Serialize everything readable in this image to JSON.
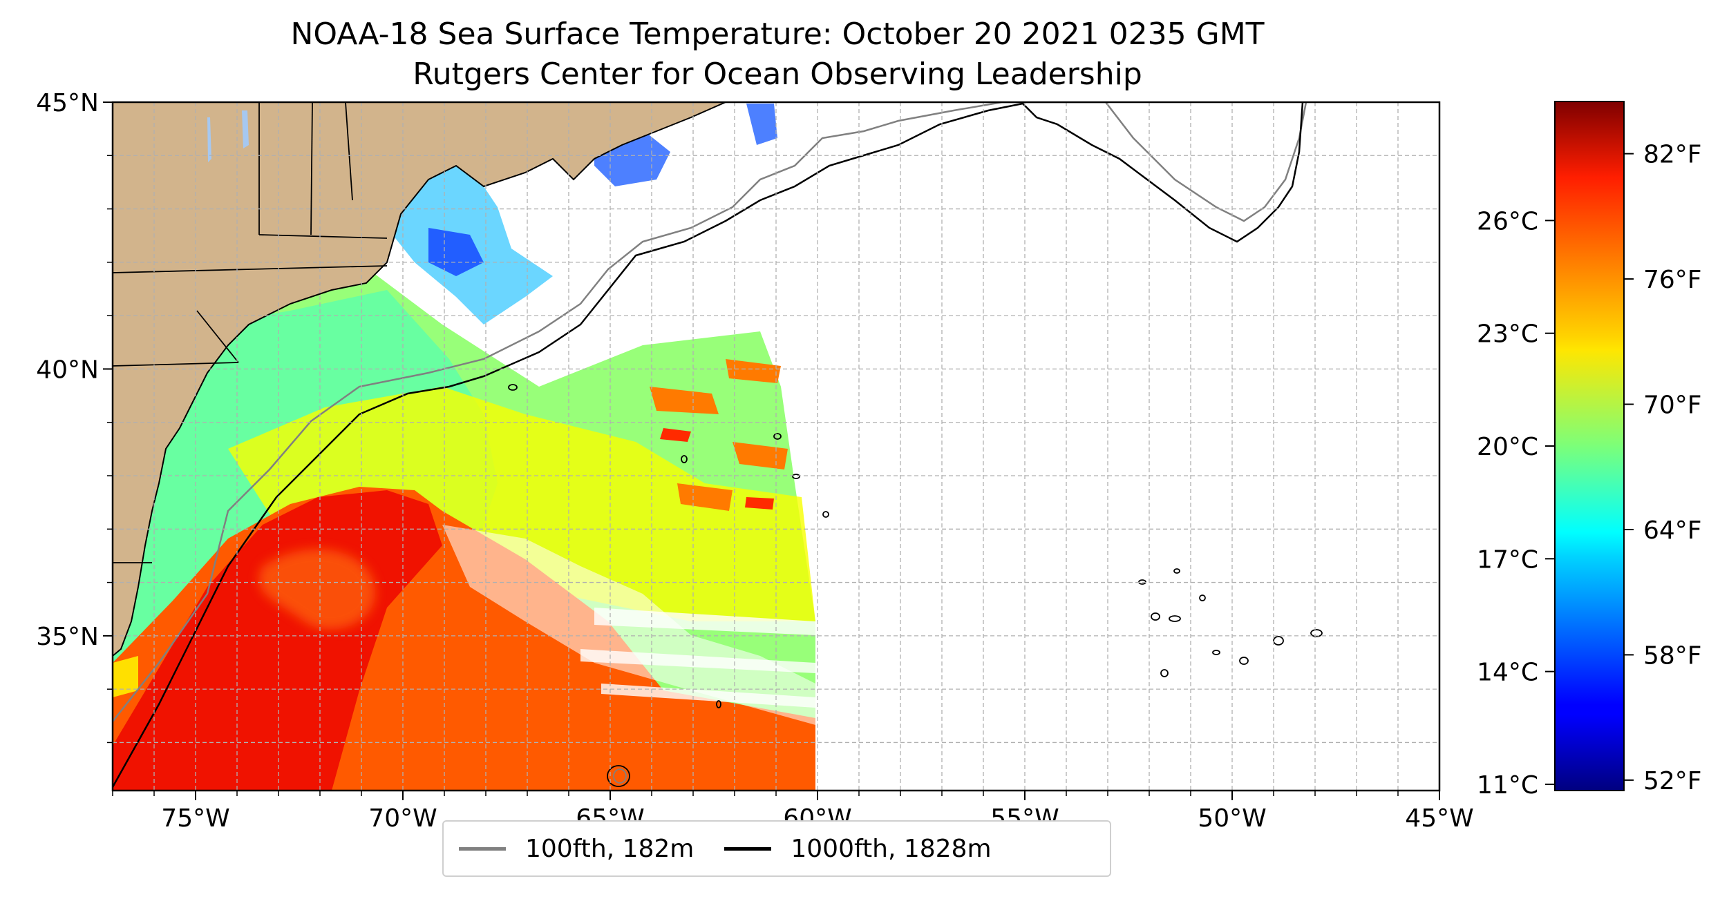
{
  "title": "NOAA-18 Sea Surface Temperature: October 20 2021 0235 GMT",
  "subtitle": "Rutgers Center for Ocean Observing Leadership",
  "map": {
    "extent": {
      "lon_min": -77,
      "lon_max": -45,
      "lat_min": 32.1,
      "lat_max": 45
    },
    "lon_ticks": [
      {
        "value": -75,
        "label": "75°W"
      },
      {
        "value": -70,
        "label": "70°W"
      },
      {
        "value": -65,
        "label": "65°W"
      },
      {
        "value": -60,
        "label": "60°W"
      },
      {
        "value": -55,
        "label": "55°W"
      },
      {
        "value": -50,
        "label": "50°W"
      },
      {
        "value": -45,
        "label": "45°W"
      }
    ],
    "lat_ticks": [
      {
        "value": 45,
        "label": "45°N"
      },
      {
        "value": 40,
        "label": "40°N"
      },
      {
        "value": 35,
        "label": "35°N"
      }
    ],
    "grid": true,
    "colors": {
      "land": "#d2b48c",
      "ocean_nodata": "#ffffff",
      "isobath_100": "#808080",
      "isobath_1000": "#000000",
      "lakes": "#a6c8f0"
    }
  },
  "colorbar": {
    "colormap": "jet",
    "celsius_ticks": [
      {
        "value": 11,
        "label": "11°C"
      },
      {
        "value": 14,
        "label": "14°C"
      },
      {
        "value": 17,
        "label": "17°C"
      },
      {
        "value": 20,
        "label": "20°C"
      },
      {
        "value": 23,
        "label": "23°C"
      },
      {
        "value": 26,
        "label": "26°C"
      }
    ],
    "fahrenheit_ticks": [
      {
        "value": 52,
        "label": "52°F"
      },
      {
        "value": 58,
        "label": "58°F"
      },
      {
        "value": 64,
        "label": "64°F"
      },
      {
        "value": 70,
        "label": "70°F"
      },
      {
        "value": 76,
        "label": "76°F"
      },
      {
        "value": 82,
        "label": "82°F"
      }
    ],
    "range_f": [
      51.5,
      84.5
    ]
  },
  "legend": {
    "placement": "bottom-center",
    "items": [
      {
        "label": "100fth, 182m",
        "color": "#808080"
      },
      {
        "label": "1000fth, 1828m",
        "color": "#000000"
      }
    ]
  }
}
